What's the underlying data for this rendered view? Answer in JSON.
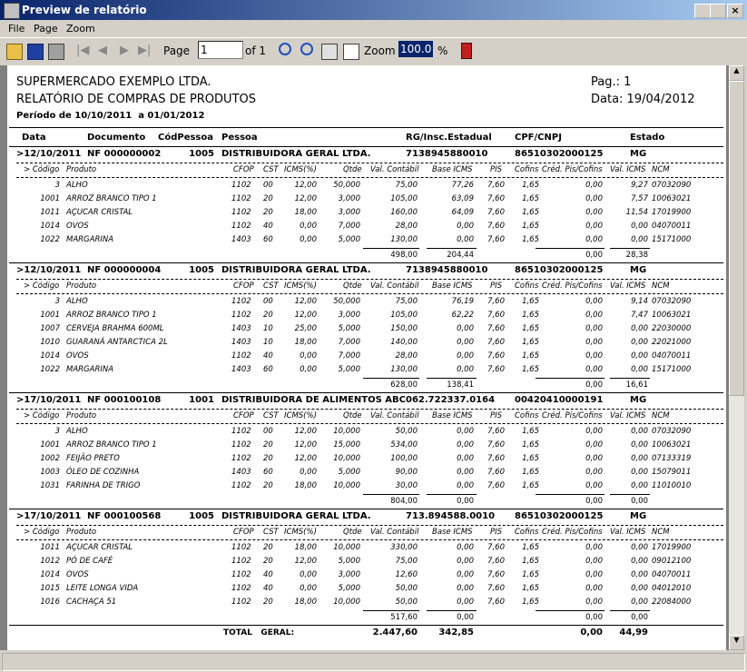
{
  "window": {
    "title": "Preview de relatório"
  },
  "menu": [
    "File",
    "Page",
    "Zoom"
  ],
  "toolbar": {
    "page_label": "Page",
    "page_value": "1",
    "of": "of 1",
    "zoom_label": "Zoom",
    "zoom_value": "100.0",
    "percent": "%"
  },
  "report": {
    "company": "SUPERMERCADO EXEMPLO LTDA.",
    "title": "RELATÓRIO DE COMPRAS DE PRODUTOS",
    "period": "Período de 10/10/2011  a 01/01/2012",
    "page": "Pag.: 1",
    "date": "Data: 19/04/2012",
    "columns": [
      "Data",
      "Documento",
      "CódPessoa",
      "Pessoa",
      "RG/Insc.Estadual",
      "CPF/CNPJ",
      "Estado"
    ],
    "subcolumns": [
      "> Código",
      "Produto",
      "CFOP",
      "CST",
      "ICMS(%)",
      "Qtde",
      "Val. Contábil",
      "Base ICMS",
      "PIS",
      "Cofins",
      "Créd. Pis/Cofins",
      "Val. ICMS",
      "NCM"
    ],
    "groups": [
      {
        "header": [
          ">12/10/2011",
          "NF 000000002",
          "1005",
          "DISTRIBUIDORA GERAL LTDA.",
          "7138945880010",
          "86510302000125",
          "MG"
        ],
        "items": [
          [
            "3",
            "ALHO",
            "1102",
            "00",
            "12,00",
            "50,000",
            "75,00",
            "77,26",
            "7,60",
            "1,65",
            "0,00",
            "9,27",
            "07032090"
          ],
          [
            "1001",
            "ARROZ BRANCO TIPO 1",
            "1102",
            "20",
            "12,00",
            "3,000",
            "105,00",
            "63,09",
            "7,60",
            "1,65",
            "0,00",
            "7,57",
            "10063021"
          ],
          [
            "1011",
            "AÇUCAR CRISTAL",
            "1102",
            "20",
            "18,00",
            "3,000",
            "160,00",
            "64,09",
            "7,60",
            "1,65",
            "0,00",
            "11,54",
            "17019900"
          ],
          [
            "1014",
            "OVOS",
            "1102",
            "40",
            "0,00",
            "7,000",
            "28,00",
            "0,00",
            "7,60",
            "1,65",
            "0,00",
            "0,00",
            "04070011"
          ],
          [
            "1022",
            "MARGARINA",
            "1403",
            "60",
            "0,00",
            "5,000",
            "130,00",
            "0,00",
            "7,60",
            "1,65",
            "0,00",
            "0,00",
            "15171000"
          ]
        ],
        "totals": [
          "498,00",
          "204,44",
          "0,00",
          "28,38"
        ]
      },
      {
        "header": [
          ">12/10/2011",
          "NF 000000004",
          "1005",
          "DISTRIBUIDORA GERAL LTDA.",
          "7138945880010",
          "86510302000125",
          "MG"
        ],
        "items": [
          [
            "3",
            "ALHO",
            "1102",
            "00",
            "12,00",
            "50,000",
            "75,00",
            "76,19",
            "7,60",
            "1,65",
            "0,00",
            "9,14",
            "07032090"
          ],
          [
            "1001",
            "ARROZ BRANCO TIPO 1",
            "1102",
            "20",
            "12,00",
            "3,000",
            "105,00",
            "62,22",
            "7,60",
            "1,65",
            "0,00",
            "7,47",
            "10063021"
          ],
          [
            "1007",
            "CERVEJA BRAHMA 600ML",
            "1403",
            "10",
            "25,00",
            "5,000",
            "150,00",
            "0,00",
            "7,60",
            "1,65",
            "0,00",
            "0,00",
            "22030000"
          ],
          [
            "1010",
            "GUARANÁ ANTARCTICA 2L",
            "1403",
            "10",
            "18,00",
            "7,000",
            "140,00",
            "0,00",
            "7,60",
            "1,65",
            "0,00",
            "0,00",
            "22021000"
          ],
          [
            "1014",
            "OVOS",
            "1102",
            "40",
            "0,00",
            "7,000",
            "28,00",
            "0,00",
            "7,60",
            "1,65",
            "0,00",
            "0,00",
            "04070011"
          ],
          [
            "1022",
            "MARGARINA",
            "1403",
            "60",
            "0,00",
            "5,000",
            "130,00",
            "0,00",
            "7,60",
            "1,65",
            "0,00",
            "0,00",
            "15171000"
          ]
        ],
        "totals": [
          "628,00",
          "138,41",
          "0,00",
          "16,61"
        ]
      },
      {
        "header": [
          ">17/10/2011",
          "NF 000100108",
          "1001",
          "DISTRIBUIDORA DE ALIMENTOS ABC",
          "062.722337.0164",
          "00420410000191",
          "MG"
        ],
        "items": [
          [
            "3",
            "ALHO",
            "1102",
            "00",
            "12,00",
            "10,000",
            "50,00",
            "0,00",
            "7,60",
            "1,65",
            "0,00",
            "0,00",
            "07032090"
          ],
          [
            "1001",
            "ARROZ BRANCO TIPO 1",
            "1102",
            "20",
            "12,00",
            "15,000",
            "534,00",
            "0,00",
            "7,60",
            "1,65",
            "0,00",
            "0,00",
            "10063021"
          ],
          [
            "1002",
            "FEIJÃO PRETO",
            "1102",
            "20",
            "12,00",
            "10,000",
            "100,00",
            "0,00",
            "7,60",
            "1,65",
            "0,00",
            "0,00",
            "07133319"
          ],
          [
            "1003",
            "ÓLEO DE COZINHA",
            "1403",
            "60",
            "0,00",
            "5,000",
            "90,00",
            "0,00",
            "7,60",
            "1,65",
            "0,00",
            "0,00",
            "15079011"
          ],
          [
            "1031",
            "FARINHA DE TRIGO",
            "1102",
            "20",
            "18,00",
            "10,000",
            "30,00",
            "0,00",
            "7,60",
            "1,65",
            "0,00",
            "0,00",
            "11010010"
          ]
        ],
        "totals": [
          "804,00",
          "0,00",
          "0,00",
          "0,00"
        ]
      },
      {
        "header": [
          ">17/10/2011",
          "NF 000100568",
          "1005",
          "DISTRIBUIDORA GERAL LTDA.",
          "713.894588.0010",
          "86510302000125",
          "MG"
        ],
        "items": [
          [
            "1011",
            "AÇUCAR CRISTAL",
            "1102",
            "20",
            "18,00",
            "10,000",
            "330,00",
            "0,00",
            "7,60",
            "1,65",
            "0,00",
            "0,00",
            "17019900"
          ],
          [
            "1012",
            "PÓ DE CAFÉ",
            "1102",
            "20",
            "12,00",
            "5,000",
            "75,00",
            "0,00",
            "7,60",
            "1,65",
            "0,00",
            "0,00",
            "09012100"
          ],
          [
            "1014",
            "OVOS",
            "1102",
            "40",
            "0,00",
            "3,000",
            "12,60",
            "0,00",
            "7,60",
            "1,65",
            "0,00",
            "0,00",
            "04070011"
          ],
          [
            "1015",
            "LEITE LONGA VIDA",
            "1102",
            "40",
            "0,00",
            "5,000",
            "50,00",
            "0,00",
            "7,60",
            "1,65",
            "0,00",
            "0,00",
            "04012010"
          ],
          [
            "1016",
            "CACHAÇA 51",
            "1102",
            "20",
            "18,00",
            "10,000",
            "50,00",
            "0,00",
            "7,60",
            "1,65",
            "0,00",
            "0,00",
            "22084000"
          ]
        ],
        "totals": [
          "517,60",
          "0,00",
          "0,00",
          "0,00"
        ]
      }
    ],
    "grand_total": {
      "label": "TOTAL   GERAL:",
      "values": [
        "2.447,60",
        "342,85",
        "0,00",
        "44,99"
      ]
    }
  }
}
